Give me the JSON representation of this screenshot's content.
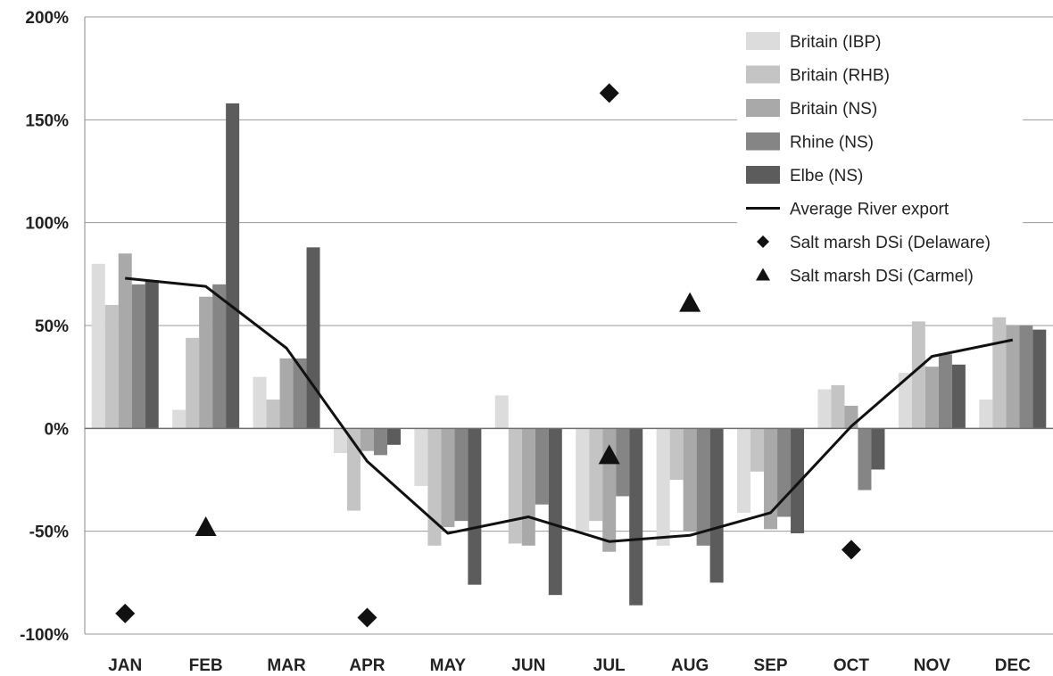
{
  "chart_data": {
    "type": "bar",
    "categories": [
      "JAN",
      "FEB",
      "MAR",
      "APR",
      "MAY",
      "JUN",
      "JUL",
      "AUG",
      "SEP",
      "OCT",
      "NOV",
      "DEC"
    ],
    "ylim": [
      -100,
      200
    ],
    "yticks": [
      -100,
      -50,
      0,
      50,
      100,
      150,
      200
    ],
    "ytick_labels": [
      "-100%",
      "-50%",
      "0%",
      "50%",
      "100%",
      "150%",
      "200%"
    ],
    "grid": true,
    "legend_position": "top-right",
    "series": [
      {
        "name": "Britain (IBP)",
        "kind": "bar",
        "color": "#dcdcdc",
        "values": [
          80,
          9,
          25,
          -12,
          -28,
          16,
          -50,
          -57,
          -41,
          19,
          27,
          14
        ]
      },
      {
        "name": "Britain (RHB)",
        "kind": "bar",
        "color": "#c4c4c4",
        "values": [
          60,
          44,
          14,
          -40,
          -57,
          -56,
          -45,
          -25,
          -21,
          21,
          52,
          54
        ]
      },
      {
        "name": "Britain (NS)",
        "kind": "bar",
        "color": "#a9a9a9",
        "values": [
          85,
          64,
          34,
          -11,
          -48,
          -57,
          -60,
          -50,
          -49,
          11,
          30,
          50
        ]
      },
      {
        "name": "Rhine (NS)",
        "kind": "bar",
        "color": "#858585",
        "values": [
          70,
          70,
          34,
          -13,
          -45,
          -37,
          -33,
          -57,
          -43,
          -30,
          36,
          50
        ]
      },
      {
        "name": "Elbe (NS)",
        "kind": "bar",
        "color": "#5c5c5c",
        "values": [
          72,
          158,
          88,
          -8,
          -76,
          -81,
          -86,
          -75,
          -51,
          -20,
          31,
          48
        ]
      },
      {
        "name": "Average River export",
        "kind": "line",
        "color": "#111111",
        "values": [
          73,
          69,
          39,
          -16,
          -51,
          -43,
          -55,
          -52,
          -41,
          1,
          35,
          43
        ]
      },
      {
        "name": "Salt marsh DSi (Delaware)",
        "kind": "diamond",
        "color": "#111111",
        "points": [
          {
            "x": "JAN",
            "y": -90
          },
          {
            "x": "APR",
            "y": -92
          },
          {
            "x": "JUL",
            "y": 163
          },
          {
            "x": "OCT",
            "y": -59
          }
        ]
      },
      {
        "name": "Salt marsh DSi (Carmel)",
        "kind": "triangle",
        "color": "#111111",
        "points": [
          {
            "x": "FEB",
            "y": -48
          },
          {
            "x": "JUL",
            "y": -13
          },
          {
            "x": "AUG",
            "y": 61
          }
        ]
      }
    ]
  }
}
